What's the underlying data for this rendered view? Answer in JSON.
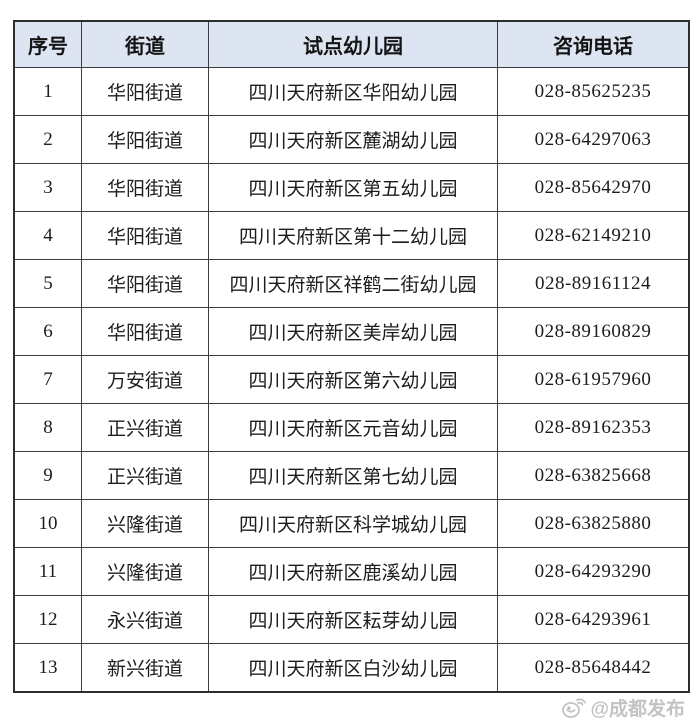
{
  "table": {
    "headers": [
      "序号",
      "街道",
      "试点幼儿园",
      "咨询电话"
    ],
    "rows": [
      [
        "1",
        "华阳街道",
        "四川天府新区华阳幼儿园",
        "028-85625235"
      ],
      [
        "2",
        "华阳街道",
        "四川天府新区麓湖幼儿园",
        "028-64297063"
      ],
      [
        "3",
        "华阳街道",
        "四川天府新区第五幼儿园",
        "028-85642970"
      ],
      [
        "4",
        "华阳街道",
        "四川天府新区第十二幼儿园",
        "028-62149210"
      ],
      [
        "5",
        "华阳街道",
        "四川天府新区祥鹤二街幼儿园",
        "028-89161124"
      ],
      [
        "6",
        "华阳街道",
        "四川天府新区美岸幼儿园",
        "028-89160829"
      ],
      [
        "7",
        "万安街道",
        "四川天府新区第六幼儿园",
        "028-61957960"
      ],
      [
        "8",
        "正兴街道",
        "四川天府新区元音幼儿园",
        "028-89162353"
      ],
      [
        "9",
        "正兴街道",
        "四川天府新区第七幼儿园",
        "028-63825668"
      ],
      [
        "10",
        "兴隆街道",
        "四川天府新区科学城幼儿园",
        "028-63825880"
      ],
      [
        "11",
        "兴隆街道",
        "四川天府新区鹿溪幼儿园",
        "028-64293290"
      ],
      [
        "12",
        "永兴街道",
        "四川天府新区耘芽幼儿园",
        "028-64293961"
      ],
      [
        "13",
        "新兴街道",
        "四川天府新区白沙幼儿园",
        "028-85648442"
      ]
    ]
  },
  "watermark": {
    "text": "@成都发布",
    "icon": "weibo-emoticon-icon"
  },
  "colors": {
    "header_bg": "#dee5f2",
    "border": "#3c3c3c",
    "text": "#1d1d1d",
    "watermark": "#bdbdbd"
  }
}
